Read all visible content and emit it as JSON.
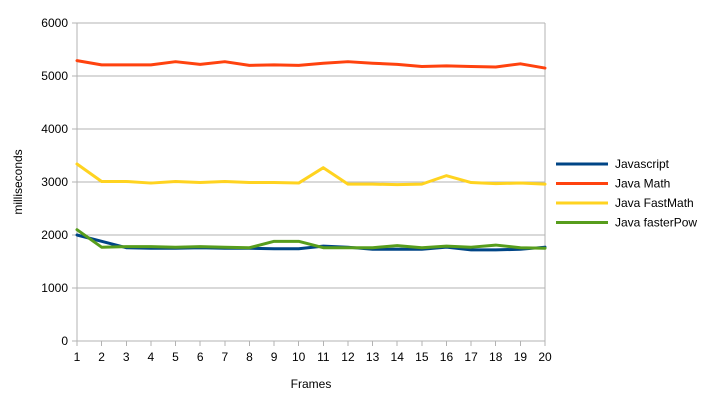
{
  "chart_data": {
    "type": "line",
    "title": "",
    "xlabel": "Frames",
    "ylabel": "milliseconds",
    "x": [
      1,
      2,
      3,
      4,
      5,
      6,
      7,
      8,
      9,
      10,
      11,
      12,
      13,
      14,
      15,
      16,
      17,
      18,
      19,
      20
    ],
    "ylim": [
      0,
      6000
    ],
    "yticks": [
      0,
      1000,
      2000,
      3000,
      4000,
      5000,
      6000
    ],
    "grid": "horizontal",
    "legend_position": "right",
    "series": [
      {
        "name": "Javascript",
        "color": "#004586",
        "values": [
          2000,
          1880,
          1760,
          1750,
          1750,
          1760,
          1750,
          1750,
          1740,
          1740,
          1790,
          1770,
          1730,
          1730,
          1730,
          1770,
          1720,
          1720,
          1730,
          1770
        ]
      },
      {
        "name": "Java Math",
        "color": "#ff420e",
        "values": [
          5290,
          5210,
          5210,
          5210,
          5270,
          5220,
          5270,
          5200,
          5210,
          5200,
          5240,
          5270,
          5240,
          5220,
          5180,
          5190,
          5180,
          5170,
          5230,
          5150
        ]
      },
      {
        "name": "Java FastMath",
        "color": "#ffd320",
        "values": [
          3340,
          3010,
          3010,
          2980,
          3010,
          2990,
          3010,
          2990,
          2990,
          2980,
          3270,
          2960,
          2960,
          2950,
          2960,
          3120,
          2990,
          2970,
          2980,
          2960
        ]
      },
      {
        "name": "Java fasterPow",
        "color": "#579d1c",
        "values": [
          2100,
          1770,
          1780,
          1780,
          1770,
          1780,
          1770,
          1760,
          1880,
          1880,
          1760,
          1760,
          1760,
          1800,
          1760,
          1790,
          1770,
          1810,
          1760,
          1750
        ]
      }
    ]
  }
}
